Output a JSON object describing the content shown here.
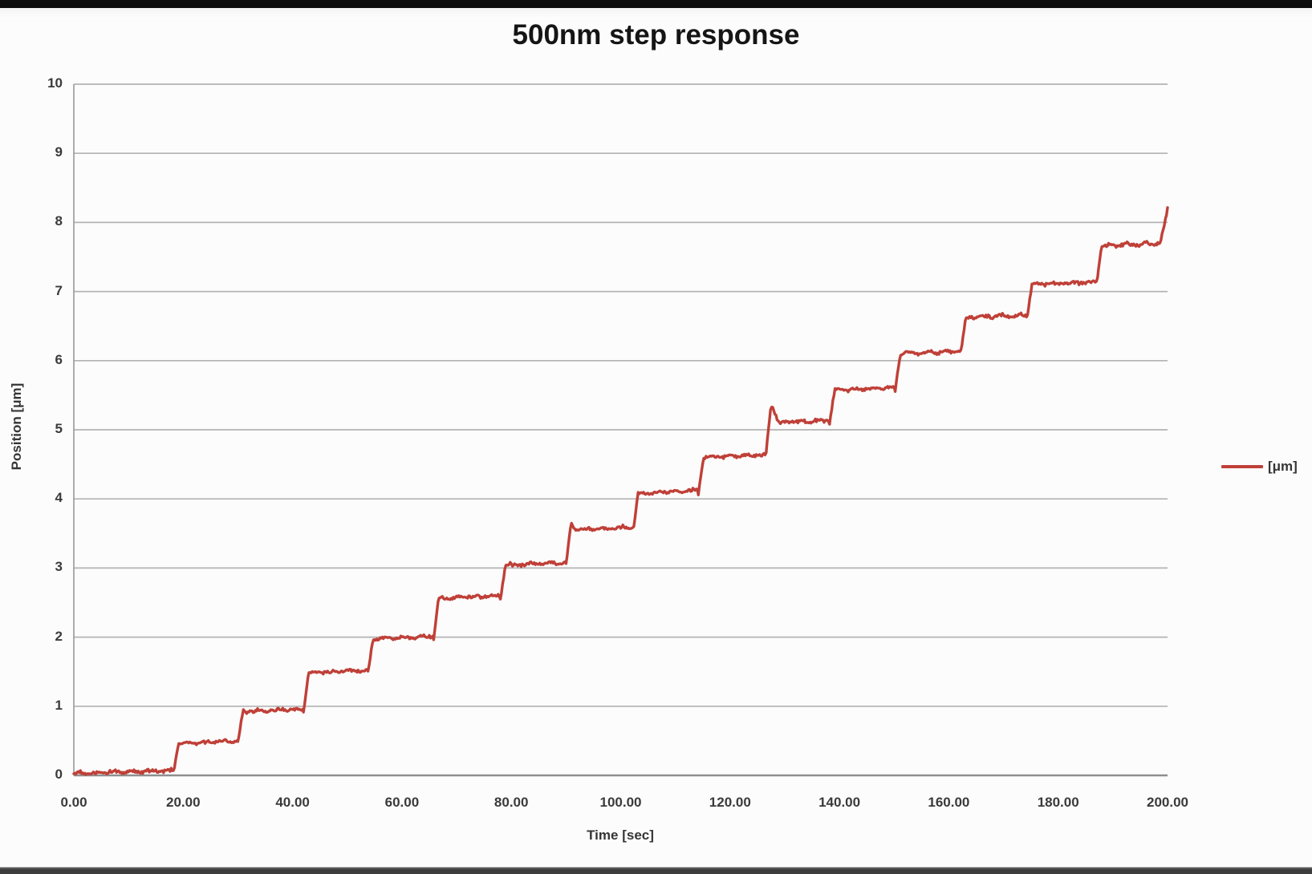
{
  "window": {
    "top_bar_color": "#0e0e0e",
    "bottom_bar_color": "#3d3d3d",
    "background": "#fcfcfc"
  },
  "chart_data": {
    "type": "line",
    "title": "500nm step response",
    "xlabel": "Time [sec]",
    "ylabel": "Position [μm]",
    "legend_position": "right-middle",
    "legend": [
      {
        "label": "[μm]",
        "color": "#bf4038"
      }
    ],
    "xlim": [
      0,
      200
    ],
    "ylim": [
      0,
      10
    ],
    "x_tick_values": [
      0,
      20,
      40,
      60,
      80,
      100,
      120,
      140,
      160,
      180,
      200
    ],
    "x_tick_labels": [
      "0.00",
      "20.00",
      "40.00",
      "60.00",
      "80.00",
      "100.00",
      "120.00",
      "140.00",
      "160.00",
      "180.00",
      "200.00"
    ],
    "y_tick_values": [
      0,
      1,
      2,
      3,
      4,
      5,
      6,
      7,
      8,
      9,
      10
    ],
    "y_tick_labels": [
      "0",
      "1",
      "2",
      "3",
      "4",
      "5",
      "6",
      "7",
      "8",
      "9",
      "10"
    ],
    "grid": "horizontal",
    "grid_color": "#b3b3b3",
    "axis_color": "#979797",
    "series": [
      {
        "name": "[μm]",
        "color": "#bf4038",
        "shape": "noisy staircase: ~0.5 um increments roughly every 12 s, ending with a sharp rise to ~8.2 um at t=200 s",
        "noise_amplitude": 0.035,
        "plateau_drift": 0.04,
        "step_transition_sec": 0.9,
        "final_transition_sec": 1.4,
        "steps": [
          {
            "t": 0.0,
            "level": 0.03
          },
          {
            "t": 18.2,
            "level": 0.46
          },
          {
            "t": 30.0,
            "level": 0.92
          },
          {
            "t": 42.0,
            "level": 1.48
          },
          {
            "t": 53.8,
            "level": 1.97
          },
          {
            "t": 65.8,
            "level": 2.56
          },
          {
            "t": 78.0,
            "level": 3.04
          },
          {
            "t": 90.0,
            "level": 3.55
          },
          {
            "t": 102.3,
            "level": 4.08
          },
          {
            "t": 114.2,
            "level": 4.6
          },
          {
            "t": 126.5,
            "level": 5.1
          },
          {
            "t": 138.2,
            "level": 5.57
          },
          {
            "t": 150.2,
            "level": 6.1
          },
          {
            "t": 162.2,
            "level": 6.62
          },
          {
            "t": 174.3,
            "level": 7.1
          },
          {
            "t": 187.0,
            "level": 7.66
          },
          {
            "t": 198.6,
            "level": 8.2
          }
        ],
        "spikes": [
          {
            "t": 127.7,
            "amp": 0.24,
            "width": 1.2
          },
          {
            "t": 91.0,
            "amp": 0.1,
            "width": 0.9
          }
        ]
      }
    ]
  }
}
